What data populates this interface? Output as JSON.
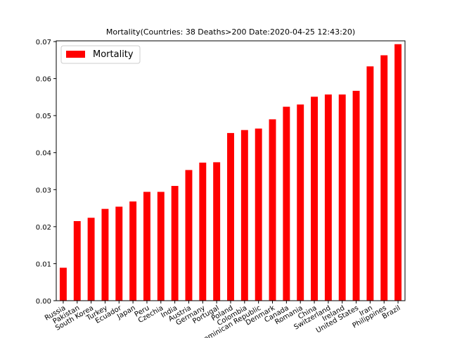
{
  "chart_data": {
    "type": "bar",
    "title": "Mortality(Countries: 38 Deaths>200 Date:2020-04-25 12:43:20)",
    "xlabel": "",
    "ylabel": "",
    "ylim": [
      0,
      0.0702
    ],
    "yticks": [
      "0.00",
      "0.01",
      "0.02",
      "0.03",
      "0.04",
      "0.05",
      "0.06",
      "0.07"
    ],
    "grid": false,
    "legend_position": "top-left",
    "bar_color": "#ff0000",
    "categories": [
      "Russia",
      "Pakistan",
      "South Korea",
      "Turkey",
      "Ecuador",
      "Japan",
      "Peru",
      "Czechia",
      "India",
      "Austria",
      "Germany",
      "Portugal",
      "Poland",
      "Colombia",
      "Dominican Republic",
      "Denmark",
      "Canada",
      "Romania",
      "China",
      "Switzerland",
      "Ireland",
      "United States",
      "Iran",
      "Philippines",
      "Brazil"
    ],
    "series": [
      {
        "name": "Mortality",
        "values": [
          0.0089,
          0.0215,
          0.0224,
          0.0248,
          0.0254,
          0.0268,
          0.0294,
          0.0294,
          0.031,
          0.0353,
          0.0373,
          0.0374,
          0.0453,
          0.0461,
          0.0465,
          0.049,
          0.0524,
          0.053,
          0.0551,
          0.0557,
          0.0557,
          0.0567,
          0.0633,
          0.0663,
          0.0693
        ]
      }
    ]
  }
}
